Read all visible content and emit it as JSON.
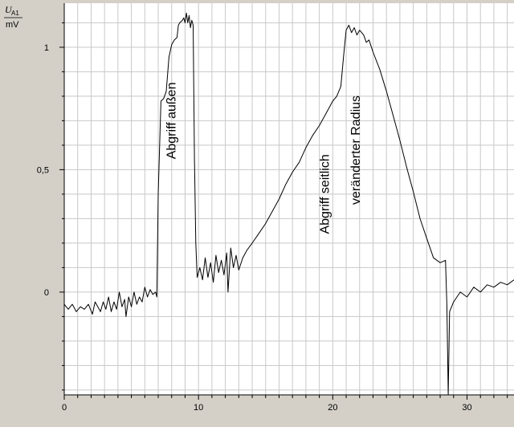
{
  "ylabel": {
    "symbol": "U",
    "subscript": "A1",
    "unit": "mV"
  },
  "colors": {
    "background": "#d4d0c8",
    "plot": "#ffffff",
    "grid": "#c8c8c8",
    "line": "#000000"
  },
  "chart_data": {
    "type": "line",
    "title": "",
    "xlabel": "",
    "ylabel": "U_A1 / mV",
    "xlim": [
      0,
      33.5
    ],
    "ylim": [
      -0.42,
      1.18
    ],
    "grid": true,
    "legend": "none",
    "x_ticks": [
      {
        "value": 0,
        "label": "0"
      },
      {
        "value": 10,
        "label": "10"
      },
      {
        "value": 20,
        "label": "20"
      },
      {
        "value": 30,
        "label": "30"
      }
    ],
    "y_ticks": [
      {
        "value": 0,
        "label": "0"
      },
      {
        "value": 0.5,
        "label": "0,5"
      },
      {
        "value": 1,
        "label": "1"
      }
    ],
    "x_minor_step": 1,
    "y_minor_step": 0.1,
    "annotations": [
      {
        "text": "Abgriff außen",
        "x": 8.3,
        "y": 0.7
      },
      {
        "text": "Abgriff seitlich",
        "x": 19.7,
        "y": 0.4
      },
      {
        "text": "veränderter Radius",
        "x": 22,
        "y": 0.58
      }
    ],
    "series": [
      {
        "points": [
          [
            0,
            -0.05
          ],
          [
            0.3,
            -0.07
          ],
          [
            0.6,
            -0.05
          ],
          [
            0.9,
            -0.08
          ],
          [
            1.2,
            -0.06
          ],
          [
            1.5,
            -0.07
          ],
          [
            1.8,
            -0.05
          ],
          [
            2.1,
            -0.09
          ],
          [
            2.3,
            -0.04
          ],
          [
            2.5,
            -0.06
          ],
          [
            2.7,
            -0.08
          ],
          [
            2.9,
            -0.04
          ],
          [
            3.1,
            -0.07
          ],
          [
            3.3,
            -0.02
          ],
          [
            3.5,
            -0.08
          ],
          [
            3.7,
            -0.04
          ],
          [
            3.9,
            -0.07
          ],
          [
            4.1,
            0.0
          ],
          [
            4.3,
            -0.06
          ],
          [
            4.5,
            -0.03
          ],
          [
            4.6,
            -0.1
          ],
          [
            4.8,
            -0.02
          ],
          [
            5.0,
            -0.06
          ],
          [
            5.2,
            0.0
          ],
          [
            5.4,
            -0.05
          ],
          [
            5.6,
            -0.02
          ],
          [
            5.8,
            -0.04
          ],
          [
            6.0,
            0.02
          ],
          [
            6.2,
            -0.02
          ],
          [
            6.4,
            0.01
          ],
          [
            6.6,
            -0.01
          ],
          [
            6.8,
            0.0
          ],
          [
            6.9,
            -0.02
          ],
          [
            7.0,
            0.4
          ],
          [
            7.2,
            0.78
          ],
          [
            7.4,
            0.79
          ],
          [
            7.6,
            0.82
          ],
          [
            7.8,
            0.96
          ],
          [
            8.0,
            1.01
          ],
          [
            8.2,
            1.03
          ],
          [
            8.4,
            1.04
          ],
          [
            8.5,
            1.09
          ],
          [
            8.6,
            1.1
          ],
          [
            8.8,
            1.11
          ],
          [
            8.9,
            1.12
          ],
          [
            9.0,
            1.1
          ],
          [
            9.1,
            1.14
          ],
          [
            9.2,
            1.1
          ],
          [
            9.3,
            1.13
          ],
          [
            9.4,
            1.08
          ],
          [
            9.5,
            1.11
          ],
          [
            9.6,
            1.09
          ],
          [
            9.7,
            0.55
          ],
          [
            9.8,
            0.2
          ],
          [
            9.9,
            0.06
          ],
          [
            10.1,
            0.1
          ],
          [
            10.3,
            0.05
          ],
          [
            10.5,
            0.14
          ],
          [
            10.7,
            0.06
          ],
          [
            10.9,
            0.12
          ],
          [
            11.1,
            0.04
          ],
          [
            11.3,
            0.15
          ],
          [
            11.5,
            0.08
          ],
          [
            11.7,
            0.13
          ],
          [
            11.9,
            0.07
          ],
          [
            12.1,
            0.16
          ],
          [
            12.2,
            0.0
          ],
          [
            12.4,
            0.18
          ],
          [
            12.6,
            0.1
          ],
          [
            12.8,
            0.15
          ],
          [
            13.0,
            0.09
          ],
          [
            13.3,
            0.14
          ],
          [
            13.6,
            0.17
          ],
          [
            14.0,
            0.2
          ],
          [
            14.5,
            0.24
          ],
          [
            15.0,
            0.28
          ],
          [
            15.5,
            0.33
          ],
          [
            16.0,
            0.38
          ],
          [
            16.5,
            0.44
          ],
          [
            17.0,
            0.49
          ],
          [
            17.5,
            0.53
          ],
          [
            18.0,
            0.59
          ],
          [
            18.5,
            0.64
          ],
          [
            19.0,
            0.68
          ],
          [
            19.5,
            0.73
          ],
          [
            20.0,
            0.78
          ],
          [
            20.3,
            0.8
          ],
          [
            20.6,
            0.84
          ],
          [
            20.8,
            0.96
          ],
          [
            21.0,
            1.07
          ],
          [
            21.2,
            1.09
          ],
          [
            21.4,
            1.06
          ],
          [
            21.6,
            1.08
          ],
          [
            21.8,
            1.05
          ],
          [
            22.0,
            1.07
          ],
          [
            22.3,
            1.05
          ],
          [
            22.5,
            1.02
          ],
          [
            22.7,
            1.03
          ],
          [
            23.0,
            0.98
          ],
          [
            23.5,
            0.91
          ],
          [
            24.0,
            0.82
          ],
          [
            24.5,
            0.72
          ],
          [
            25.0,
            0.62
          ],
          [
            25.5,
            0.51
          ],
          [
            26.0,
            0.41
          ],
          [
            26.5,
            0.3
          ],
          [
            27.0,
            0.22
          ],
          [
            27.5,
            0.14
          ],
          [
            28.0,
            0.12
          ],
          [
            28.4,
            0.13
          ],
          [
            28.5,
            -0.05
          ],
          [
            28.6,
            -0.42
          ],
          [
            28.7,
            -0.08
          ],
          [
            29.0,
            -0.04
          ],
          [
            29.5,
            0.0
          ],
          [
            30.0,
            -0.02
          ],
          [
            30.5,
            0.02
          ],
          [
            31.0,
            0.0
          ],
          [
            31.5,
            0.03
          ],
          [
            32.0,
            0.02
          ],
          [
            32.5,
            0.04
          ],
          [
            33.0,
            0.03
          ],
          [
            33.5,
            0.05
          ]
        ]
      }
    ]
  }
}
